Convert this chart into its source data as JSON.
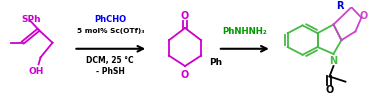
{
  "bg_color": "#ffffff",
  "mol1_color": "#cc00cc",
  "mol2_color": "#9933cc",
  "mol3_green": "#44bb44",
  "mol3_purple": "#cc44cc",
  "mol3_blue": "#0000cc",
  "reagent1_lines": [
    "PhCHO",
    "5 mol% Sc(OTf)₃",
    "DCM, 25 °C",
    "- PhSH"
  ],
  "reagent1_colors": [
    "#0000ff",
    "#000000",
    "#000000",
    "#000000"
  ],
  "reagent2_text": "PhNHNH₂",
  "reagent2_color": "#009900",
  "figsize": [
    3.78,
    0.96
  ],
  "dpi": 100
}
